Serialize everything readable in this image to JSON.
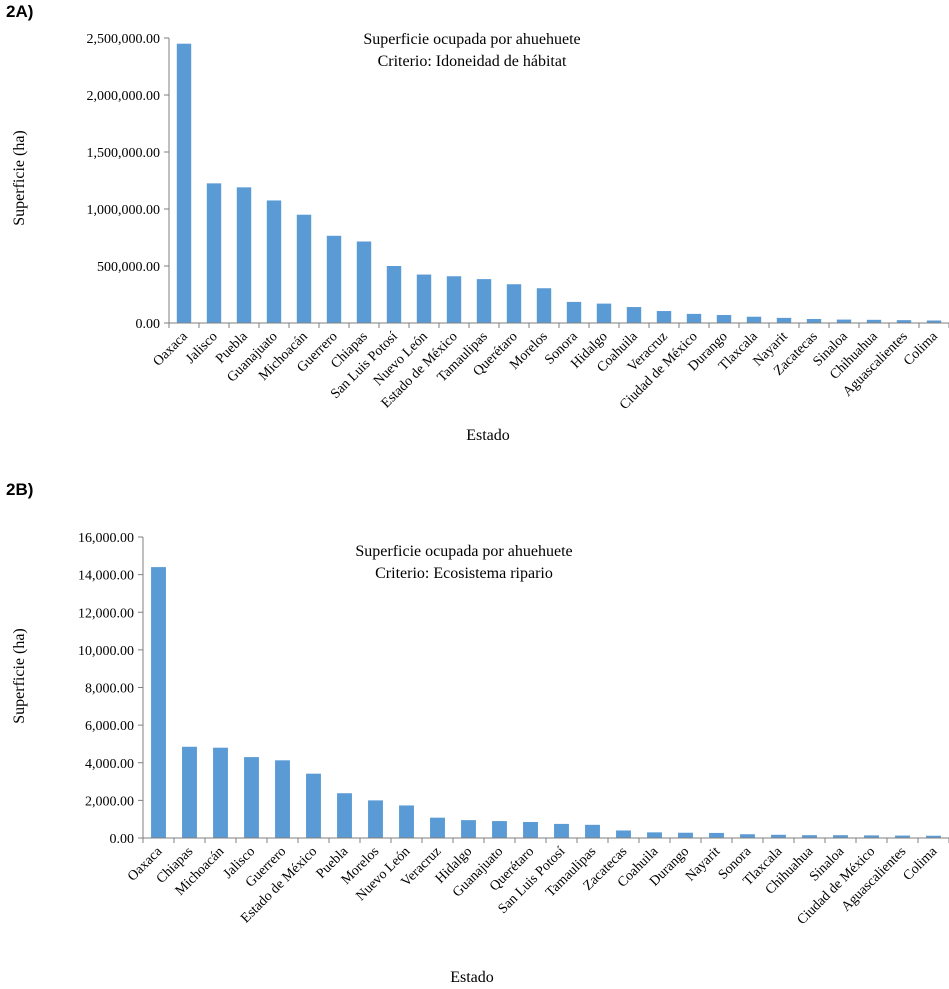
{
  "chart_data": [
    {
      "panel_label": "2A)",
      "type": "bar",
      "title": "Superficie ocupada por ahuehuete",
      "subtitle": "Criterio: Idoneidad de hábitat",
      "xlabel": "Estado",
      "ylabel": "Superficie (ha)",
      "ylim": [
        0,
        2500000
      ],
      "yticks": [
        "0.00",
        "500,000.00",
        "1,000,000.00",
        "1,500,000.00",
        "2,000,000.00",
        "2,500,000.00"
      ],
      "grid": false,
      "color": "#5b9bd5",
      "categories": [
        "Oaxaca",
        "Jalisco",
        "Puebla",
        "Guanajuato",
        "Michoacán",
        "Guerrero",
        "Chiapas",
        "San Luis Potosí",
        "Nuevo León",
        "Estado de México",
        "Tamaulipas",
        "Querétaro",
        "Morelos",
        "Sonora",
        "Hidalgo",
        "Coahuila",
        "Veracruz",
        "Ciudad de México",
        "Durango",
        "Tlaxcala",
        "Nayarit",
        "Zacatecas",
        "Sinaloa",
        "Chihuahua",
        "Aguascalientes",
        "Colima"
      ],
      "values": [
        2450000,
        1225000,
        1190000,
        1075000,
        950000,
        765000,
        715000,
        500000,
        425000,
        410000,
        385000,
        340000,
        305000,
        185000,
        170000,
        140000,
        105000,
        80000,
        70000,
        55000,
        45000,
        35000,
        30000,
        28000,
        25000,
        22000
      ]
    },
    {
      "panel_label": "2B)",
      "type": "bar",
      "title": "Superficie ocupada por ahuehuete",
      "subtitle": "Criterio: Ecosistema ripario",
      "xlabel": "Estado",
      "ylabel": "Superficie (ha)",
      "ylim": [
        0,
        16000
      ],
      "yticks": [
        "0.00",
        "2,000.00",
        "4,000.00",
        "6,000.00",
        "8,000.00",
        "10,000.00",
        "12,000.00",
        "14,000.00",
        "16,000.00"
      ],
      "grid": false,
      "color": "#5b9bd5",
      "categories": [
        "Oaxaca",
        "Chiapas",
        "Michoacán",
        "Jalisco",
        "Guerrero",
        "Estado de México",
        "Puebla",
        "Morelos",
        "Nuevo León",
        "Veracruz",
        "Hidalgo",
        "Guanajuato",
        "Querétaro",
        "San Luis Potosí",
        "Tamaulipas",
        "Zacatecas",
        "Coahuila",
        "Durango",
        "Nayarit",
        "Sonora",
        "Tlaxcala",
        "Chihuahua",
        "Sinaloa",
        "Ciudad de México",
        "Aguascalientes",
        "Colima"
      ],
      "values": [
        14400,
        4850,
        4800,
        4300,
        4130,
        3420,
        2380,
        2000,
        1730,
        1080,
        950,
        900,
        850,
        750,
        700,
        400,
        300,
        280,
        270,
        200,
        170,
        150,
        150,
        140,
        130,
        120
      ]
    }
  ]
}
